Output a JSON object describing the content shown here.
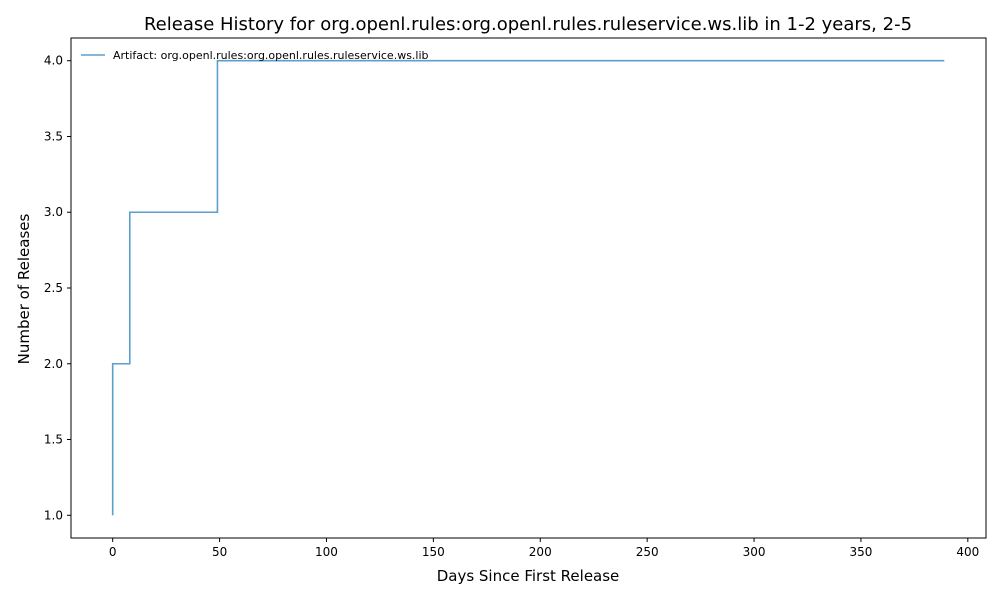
{
  "chart_data": {
    "type": "line",
    "title": "Release History for org.openl.rules:org.openl.rules.ruleservice.ws.lib in 1-2 years, 2-5",
    "xlabel": "Days Since First Release",
    "ylabel": "Number of Releases",
    "xlim": [
      -19.5,
      408.5
    ],
    "ylim": [
      0.85,
      4.15
    ],
    "x_ticks": [
      0,
      50,
      100,
      150,
      200,
      250,
      300,
      350,
      400
    ],
    "y_ticks": [
      1.0,
      1.5,
      2.0,
      2.5,
      3.0,
      3.5,
      4.0
    ],
    "x_tick_labels": [
      "0",
      "50",
      "100",
      "150",
      "200",
      "250",
      "300",
      "350",
      "400"
    ],
    "y_tick_labels": [
      "1.0",
      "1.5",
      "2.0",
      "2.5",
      "3.0",
      "3.5",
      "4.0"
    ],
    "step": "post",
    "grid": false,
    "legend_position": "top-left",
    "series": [
      {
        "name": "Artifact: org.openl.rules:org.openl.rules.ruleservice.ws.lib",
        "color": "#5b9fcb",
        "x": [
          0,
          0,
          8,
          49,
          389
        ],
        "y": [
          1,
          2,
          3,
          4,
          4
        ]
      }
    ]
  }
}
